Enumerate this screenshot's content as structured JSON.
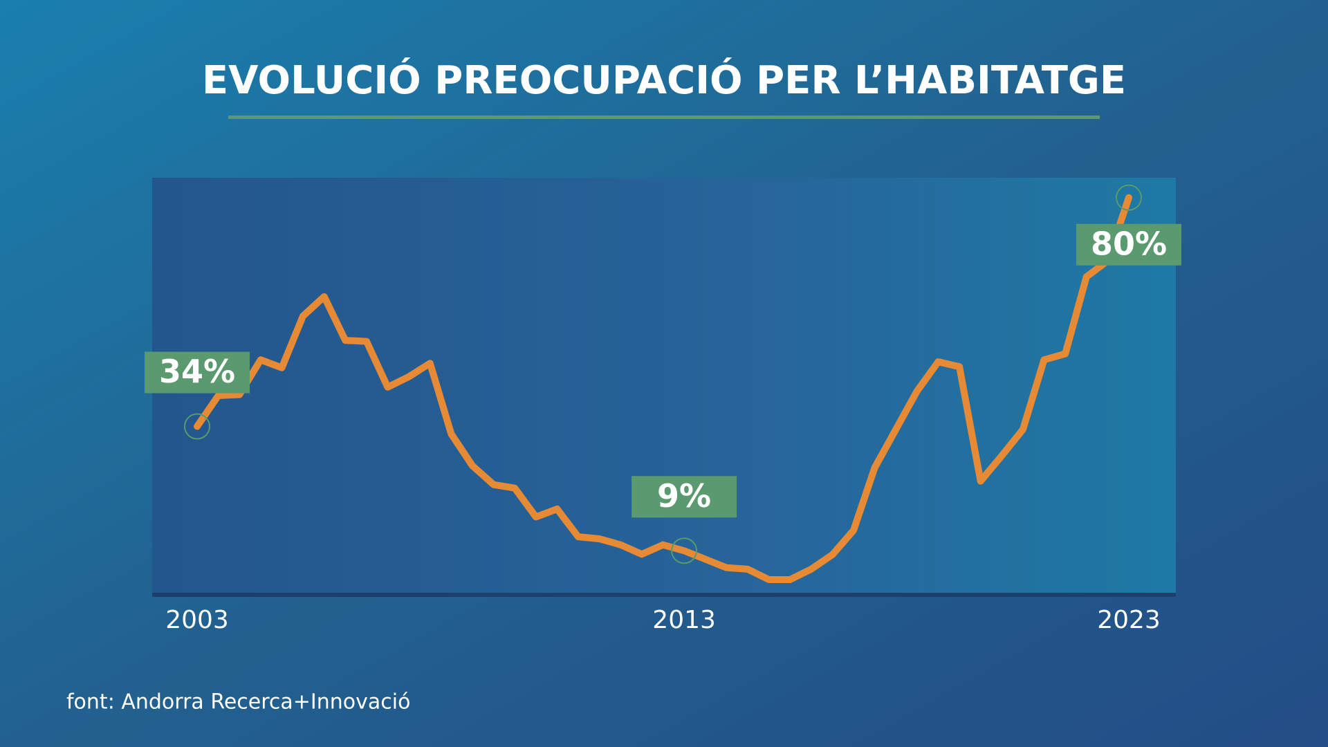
{
  "chart_data": {
    "type": "line",
    "title": "EVOLUCIÓ PREOCUPACIÓ PER L’HABITATGE",
    "source": "font: Andorra Recerca+Innovació",
    "categories": [
      "2003",
      null,
      null,
      null,
      null,
      null,
      null,
      null,
      null,
      null,
      null,
      null,
      null,
      null,
      null,
      null,
      null,
      null,
      null,
      null,
      null,
      null,
      null,
      "2013",
      null,
      null,
      null,
      null,
      null,
      null,
      null,
      null,
      null,
      null,
      null,
      null,
      null,
      null,
      null,
      null,
      null,
      null,
      null,
      null,
      "2023"
    ],
    "series": [
      {
        "name": null,
        "color": "#e68a35",
        "values": [
          34,
          40.2,
          40.4,
          47.4,
          45.8,
          56.2,
          60.1,
          51.3,
          51.1,
          41.9,
          44,
          46.7,
          32.5,
          26.1,
          22.3,
          21.6,
          15.8,
          17.4,
          11.8,
          11.4,
          10.2,
          8.3,
          10.2,
          9,
          7.3,
          5.6,
          5.3,
          3.2,
          3.2,
          5.3,
          8.2,
          13.1,
          25.7,
          33.4,
          41.1,
          47,
          46,
          23,
          28.1,
          33.4,
          47.4,
          48.6,
          64.1,
          67.3,
          80
        ],
        "value_labels": [
          "34%",
          null,
          null,
          null,
          null,
          null,
          null,
          null,
          null,
          null,
          null,
          null,
          null,
          null,
          null,
          null,
          null,
          null,
          null,
          null,
          null,
          null,
          null,
          "9%",
          null,
          null,
          null,
          null,
          null,
          null,
          null,
          null,
          null,
          null,
          null,
          null,
          null,
          null,
          null,
          null,
          null,
          null,
          null,
          null,
          "80%"
        ]
      }
    ],
    "ylim": [
      0,
      84
    ],
    "grid": false
  }
}
